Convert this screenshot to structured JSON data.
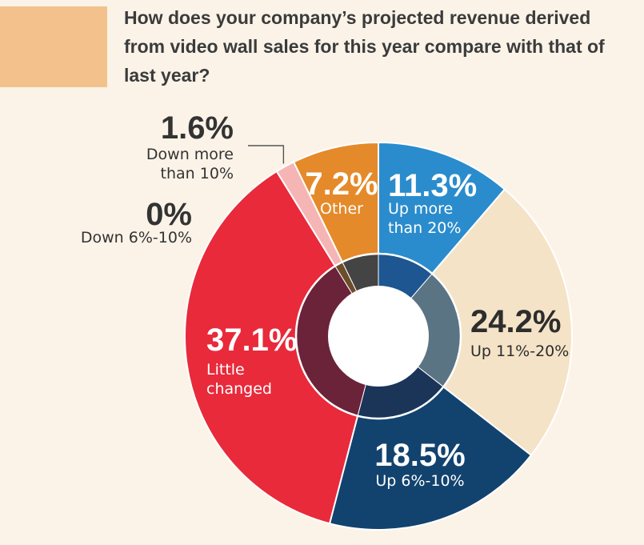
{
  "question": "How does your company’s projected revenue derived from video wall sales for this year compare with that of last year?",
  "colors": {
    "background": "#fbf3e8",
    "accent_block": "#f3c28c",
    "inner_ring": [
      "#1d5690",
      "#5b7483",
      "#1b3559",
      "#6b2339",
      "#5c5a5f",
      "#6b4d2a"
    ]
  },
  "chart_data": {
    "type": "pie",
    "variant": "donut",
    "title": "How does your company’s projected revenue derived from video wall sales for this year compare with that of last year?",
    "unit": "%",
    "slices": [
      {
        "value": 11.3,
        "value_label": "11.3%",
        "label_lines": [
          "Up more",
          "than 20%"
        ],
        "color": "#2a8ccc"
      },
      {
        "value": 24.2,
        "value_label": "24.2%",
        "label_lines": [
          "Up 11%-20%"
        ],
        "color": "#f4e3c7"
      },
      {
        "value": 18.5,
        "value_label": "18.5%",
        "label_lines": [
          "Up 6%-10%"
        ],
        "color": "#12436f"
      },
      {
        "value": 37.1,
        "value_label": "37.1%",
        "label_lines": [
          "Little",
          "changed"
        ],
        "color": "#e82a3b"
      },
      {
        "value": 0,
        "value_label": "0%",
        "label_lines": [
          "Down 6%-10%"
        ],
        "color": "#9b9b9b"
      },
      {
        "value": 1.6,
        "value_label": "1.6%",
        "label_lines": [
          "Down more",
          "than 10%"
        ],
        "color": "#f5b5b5"
      },
      {
        "value": 7.2,
        "value_label": "7.2%",
        "label_lines": [
          "Other"
        ],
        "color": "#e58a2a"
      }
    ]
  }
}
